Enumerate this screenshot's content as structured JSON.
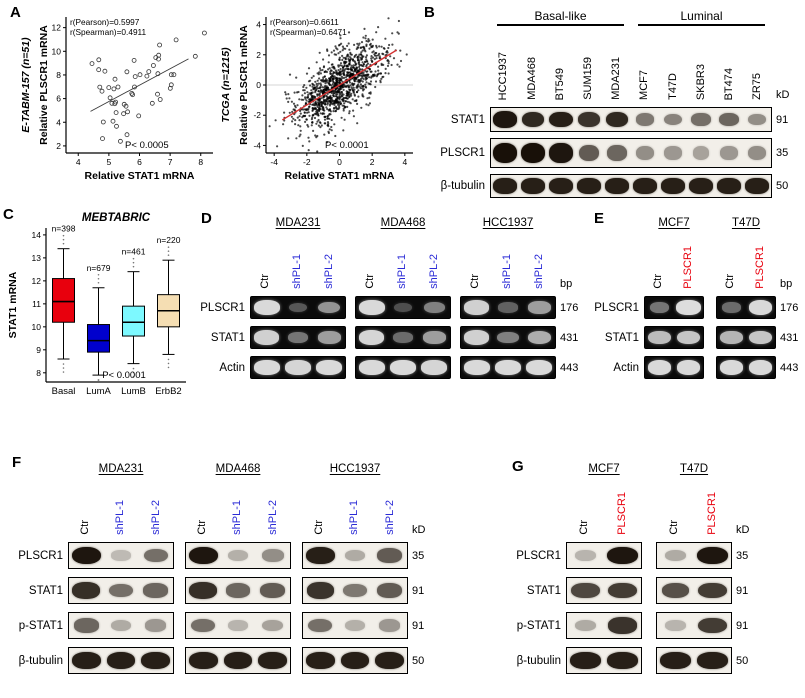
{
  "panels": {
    "A": {
      "label": "A",
      "plots": [
        {
          "dataset": "E-TABM-157 (n=51)",
          "ylabel": "Relative PLSCR1 mRNA",
          "xlabel": "Relative STAT1 mRNA",
          "annotation_line1": "r(Pearson)=0.5997",
          "annotation_line2": "r(Spearman)=0.4911",
          "pvalue": "P< 0.0005",
          "chart_data": {
            "type": "scatter",
            "n": 51,
            "pearson_r": 0.5997,
            "spearman_r": 0.4911,
            "xlim": [
              3.6,
              8.4
            ],
            "ylim": [
              1.4,
              12.9
            ],
            "xticks": [
              4,
              5,
              6,
              7,
              8
            ],
            "yticks": [
              2,
              4,
              6,
              8,
              10,
              12
            ],
            "mean": [
              5.9,
              7.0
            ],
            "sd": [
              0.95,
              2.2
            ],
            "seed": 11,
            "open_markers": true,
            "zero_line": false,
            "trend": {
              "x": [
                4.4,
                7.6
              ],
              "color": "#3a3a3a",
              "width": 0.9
            }
          }
        },
        {
          "dataset": "TCGA (n=1215)",
          "ylabel": "Relative PLSCR1 mRNA",
          "xlabel": "Relative STAT1 mRNA",
          "annotation_line1": "r(Pearson)=0.6611",
          "annotation_line2": "r(Spearman)=0.6471",
          "pvalue": "P< 0.0001",
          "chart_data": {
            "type": "scatter",
            "n": 1215,
            "pearson_r": 0.6611,
            "spearman_r": 0.6471,
            "xlim": [
              -4.5,
              4.5
            ],
            "ylim": [
              -4.5,
              4.5
            ],
            "xticks": [
              -4,
              -2,
              0,
              2,
              4
            ],
            "yticks": [
              -4,
              -2,
              0,
              2,
              4
            ],
            "mean": [
              0,
              0
            ],
            "sd": [
              1.4,
              1.4
            ],
            "seed": 29,
            "open_markers": false,
            "zero_line": true,
            "trend": {
              "x": [
                -3.5,
                3.5
              ],
              "color": "#d43030",
              "width": 1.4
            }
          }
        }
      ]
    },
    "B": {
      "label": "B",
      "unit": "kD",
      "style": "western",
      "group_headers": [
        {
          "label": "Basal-like",
          "span": 5
        },
        {
          "label": "Luminal",
          "span": 5
        }
      ],
      "lanes": [
        {
          "text": "HCC1937",
          "color": "#000000"
        },
        {
          "text": "MDA468",
          "color": "#000000"
        },
        {
          "text": "BT549",
          "color": "#000000"
        },
        {
          "text": "SUM159",
          "color": "#000000"
        },
        {
          "text": "MDA231",
          "color": "#000000"
        },
        {
          "text": "MCF7",
          "color": "#000000"
        },
        {
          "text": "T47D",
          "color": "#000000"
        },
        {
          "text": "SKBR3",
          "color": "#000000"
        },
        {
          "text": "BT474",
          "color": "#000000"
        },
        {
          "text": "ZR75",
          "color": "#000000"
        }
      ],
      "row_labels": [
        "STAT1",
        "PLSCR1",
        "β-tubulin"
      ],
      "sizes": [
        "91",
        "35",
        "50"
      ],
      "groups": [
        {
          "name": null,
          "rows": [
            [
              0.95,
              0.85,
              0.9,
              0.8,
              0.85,
              0.45,
              0.4,
              0.5,
              0.55,
              0.35
            ],
            [
              1,
              1,
              0.95,
              0.6,
              0.55,
              0.35,
              0.3,
              0.25,
              0.3,
              0.35
            ],
            [
              0.9,
              0.9,
              0.9,
              0.9,
              0.9,
              0.9,
              0.9,
              0.9,
              0.9,
              0.9
            ]
          ]
        }
      ]
    },
    "C": {
      "label": "C",
      "title": "MEBTABRIC",
      "ylabel": "STAT1 mRNA",
      "pvalue": "P< 0.0001",
      "chart_data": {
        "type": "box",
        "yticks": [
          8,
          9,
          10,
          11,
          12,
          13,
          14
        ],
        "ylim": [
          7.6,
          14.3
        ],
        "boxes": [
          {
            "name": "Basal",
            "n_label": "n=398",
            "color": "#e8000d",
            "low": 8.6,
            "q1": 10.2,
            "median": 11.1,
            "q3": 12.1,
            "high": 13.4
          },
          {
            "name": "LumA",
            "n_label": "n=679",
            "color": "#0000cd",
            "low": 7.9,
            "q1": 8.9,
            "median": 9.4,
            "q3": 10.1,
            "high": 11.7
          },
          {
            "name": "LumB",
            "n_label": "n=461",
            "color": "#7df9ff",
            "low": 8.4,
            "q1": 9.6,
            "median": 10.2,
            "q3": 10.9,
            "high": 12.4
          },
          {
            "name": "ErbB2",
            "n_label": "n=220",
            "color": "#f5deb3",
            "low": 8.8,
            "q1": 10.0,
            "median": 10.7,
            "q3": 11.4,
            "high": 12.9
          }
        ]
      }
    },
    "D": {
      "label": "D",
      "unit": "bp",
      "style": "gel",
      "lanes": [
        {
          "text": "Ctr",
          "color": "#000000"
        },
        {
          "text": "shPL-1",
          "color": "#2b2bd6"
        },
        {
          "text": "shPL-2",
          "color": "#2b2bd6"
        }
      ],
      "row_labels": [
        "PLSCR1",
        "STAT1",
        "Actin"
      ],
      "sizes": [
        "176",
        "431",
        "443"
      ],
      "groups": [
        {
          "name": "MDA231",
          "rows": [
            [
              0.9,
              0.25,
              0.55
            ],
            [
              0.85,
              0.4,
              0.6
            ],
            [
              0.9,
              0.88,
              0.9
            ]
          ]
        },
        {
          "name": "MDA468",
          "rows": [
            [
              0.9,
              0.2,
              0.45
            ],
            [
              0.88,
              0.35,
              0.6
            ],
            [
              0.9,
              0.9,
              0.88
            ]
          ]
        },
        {
          "name": "HCC1937",
          "rows": [
            [
              0.85,
              0.3,
              0.6
            ],
            [
              0.85,
              0.45,
              0.68
            ],
            [
              0.9,
              0.9,
              0.9
            ]
          ]
        }
      ]
    },
    "E": {
      "label": "E",
      "unit": "bp",
      "style": "gel",
      "lanes": [
        {
          "text": "Ctr",
          "color": "#000000"
        },
        {
          "text": "PLSCR1",
          "color": "#e8000d"
        }
      ],
      "row_labels": [
        "PLSCR1",
        "STAT1",
        "Actin"
      ],
      "sizes": [
        "176",
        "431",
        "443"
      ],
      "groups": [
        {
          "name": "MCF7",
          "rows": [
            [
              0.4,
              0.92
            ],
            [
              0.75,
              0.8
            ],
            [
              0.9,
              0.9
            ]
          ]
        },
        {
          "name": "T47D",
          "rows": [
            [
              0.35,
              0.9
            ],
            [
              0.72,
              0.8
            ],
            [
              0.9,
              0.9
            ]
          ]
        }
      ]
    },
    "F": {
      "label": "F",
      "unit": "kD",
      "style": "western",
      "lanes": [
        {
          "text": "Ctr",
          "color": "#000000"
        },
        {
          "text": "shPL-1",
          "color": "#2b2bd6"
        },
        {
          "text": "shPL-2",
          "color": "#2b2bd6"
        }
      ],
      "row_labels": [
        "PLSCR1",
        "STAT1",
        "p-STAT1",
        "β-tubulin"
      ],
      "sizes": [
        "35",
        "91",
        "91",
        "50"
      ],
      "groups": [
        {
          "name": "MDA231",
          "rows": [
            [
              0.95,
              0.12,
              0.5
            ],
            [
              0.82,
              0.5,
              0.55
            ],
            [
              0.55,
              0.2,
              0.3
            ],
            [
              0.9,
              0.9,
              0.9
            ]
          ]
        },
        {
          "name": "MDA468",
          "rows": [
            [
              0.95,
              0.18,
              0.35
            ],
            [
              0.82,
              0.55,
              0.6
            ],
            [
              0.5,
              0.15,
              0.25
            ],
            [
              0.9,
              0.9,
              0.9
            ]
          ]
        },
        {
          "name": "HCC1937",
          "rows": [
            [
              0.9,
              0.2,
              0.6
            ],
            [
              0.8,
              0.45,
              0.6
            ],
            [
              0.5,
              0.18,
              0.3
            ],
            [
              0.9,
              0.9,
              0.9
            ]
          ]
        }
      ]
    },
    "G": {
      "label": "G",
      "unit": "kD",
      "style": "western",
      "lanes": [
        {
          "text": "Ctr",
          "color": "#000000"
        },
        {
          "text": "PLSCR1",
          "color": "#e8000d"
        }
      ],
      "row_labels": [
        "PLSCR1",
        "STAT1",
        "p-STAT1",
        "β-tubulin"
      ],
      "sizes": [
        "35",
        "91",
        "91",
        "50"
      ],
      "groups": [
        {
          "name": "MCF7",
          "rows": [
            [
              0.15,
              0.95
            ],
            [
              0.7,
              0.75
            ],
            [
              0.2,
              0.8
            ],
            [
              0.9,
              0.9
            ]
          ]
        },
        {
          "name": "T47D",
          "rows": [
            [
              0.2,
              0.95
            ],
            [
              0.65,
              0.75
            ],
            [
              0.15,
              0.75
            ],
            [
              0.9,
              0.9
            ]
          ]
        }
      ]
    }
  }
}
